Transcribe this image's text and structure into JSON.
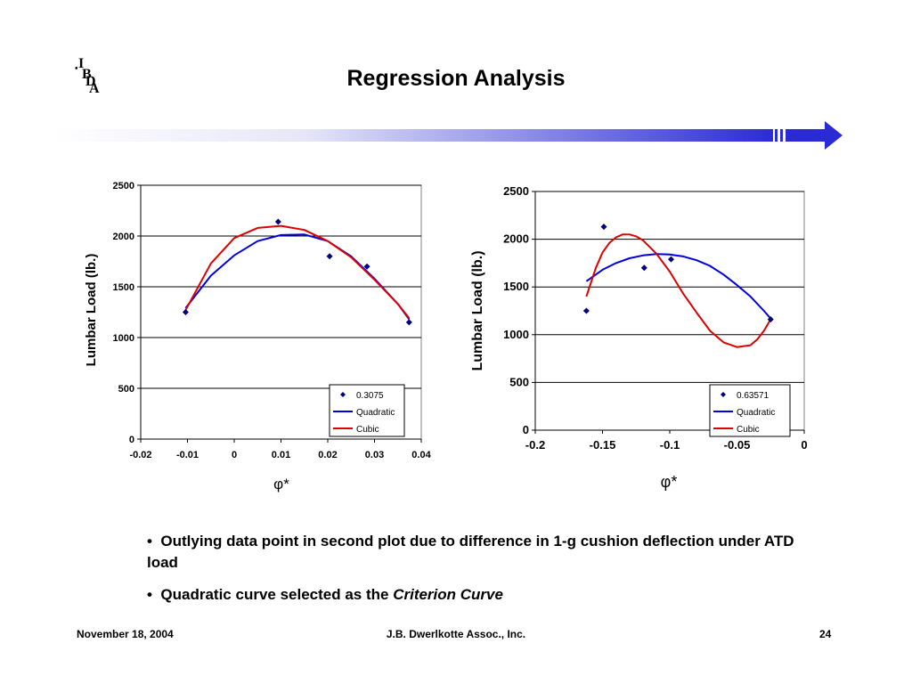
{
  "slide": {
    "logo_letters": [
      "I",
      "B",
      "D",
      "A"
    ],
    "title": "Regression Analysis",
    "bullets": [
      {
        "text": "Outlying data point in second plot due to difference in 1-g cushion deflection under ATD load",
        "italic_tail": ""
      },
      {
        "text": "Quadratic curve selected as the ",
        "italic_tail": "Criterion Curve"
      }
    ],
    "bullet_symbol": "•",
    "footer": {
      "date": "November 18, 2004",
      "company": "J.B. Dwerlkotte Assoc., Inc.",
      "page": "24"
    },
    "colors": {
      "banner_start": "#ffffff",
      "banner_end": "#2b2bd6",
      "arrow": "#2b2bd6"
    }
  },
  "chart_data": [
    {
      "type": "scatter",
      "xlabel": "φ*",
      "ylabel": "Lumbar Load (lb.)",
      "xlim": [
        -0.02,
        0.04
      ],
      "ylim": [
        0,
        2500
      ],
      "xticks": [
        "-0.02",
        "-0.01",
        "0",
        "0.01",
        "0.02",
        "0.03",
        "0.04"
      ],
      "yticks": [
        "0",
        "500",
        "1000",
        "1500",
        "2000",
        "2500"
      ],
      "grid": "horizontal",
      "legend_position": "bottom-right",
      "points": {
        "name": "0.3075",
        "color": "#000080",
        "x": [
          -0.0104,
          0.0094,
          0.0204,
          0.0284,
          0.0374
        ],
        "y": [
          1250,
          2140,
          1800,
          1700,
          1150
        ]
      },
      "series": [
        {
          "name": "Quadratic",
          "color": "#0000dd",
          "x": [
            -0.0104,
            -0.005,
            0.0,
            0.005,
            0.01,
            0.015,
            0.02,
            0.025,
            0.03,
            0.035,
            0.0374
          ],
          "y": [
            1290,
            1610,
            1810,
            1950,
            2010,
            2015,
            1950,
            1800,
            1580,
            1330,
            1180
          ]
        },
        {
          "name": "Cubic",
          "color": "#dd0000",
          "x": [
            -0.0104,
            -0.005,
            0.0,
            0.005,
            0.01,
            0.015,
            0.02,
            0.025,
            0.03,
            0.035,
            0.0374
          ],
          "y": [
            1270,
            1730,
            1980,
            2080,
            2100,
            2060,
            1950,
            1790,
            1570,
            1330,
            1190
          ]
        }
      ]
    },
    {
      "type": "scatter",
      "xlabel": "φ*",
      "ylabel": "Lumbar Load (lb.)",
      "xlim": [
        -0.2,
        0
      ],
      "ylim": [
        0,
        2500
      ],
      "xticks": [
        "-0.2",
        "-0.15",
        "-0.1",
        "-0.05",
        "0"
      ],
      "yticks": [
        "0",
        "500",
        "1000",
        "1500",
        "2000",
        "2500"
      ],
      "grid": "horizontal",
      "legend_position": "bottom-right",
      "points": {
        "name": "0.63571",
        "color": "#000080",
        "x": [
          -0.162,
          -0.149,
          -0.119,
          -0.099,
          -0.025
        ],
        "y": [
          1250,
          2130,
          1700,
          1790,
          1160
        ]
      },
      "series": [
        {
          "name": "Quadratic",
          "color": "#0000dd",
          "x": [
            -0.162,
            -0.15,
            -0.14,
            -0.13,
            -0.12,
            -0.11,
            -0.1,
            -0.09,
            -0.08,
            -0.07,
            -0.06,
            -0.05,
            -0.04,
            -0.03,
            -0.025
          ],
          "y": [
            1560,
            1680,
            1750,
            1800,
            1830,
            1845,
            1840,
            1820,
            1780,
            1720,
            1630,
            1520,
            1400,
            1250,
            1170
          ]
        },
        {
          "name": "Cubic",
          "color": "#dd0000",
          "x": [
            -0.162,
            -0.155,
            -0.15,
            -0.145,
            -0.14,
            -0.135,
            -0.13,
            -0.125,
            -0.12,
            -0.11,
            -0.1,
            -0.09,
            -0.08,
            -0.07,
            -0.06,
            -0.05,
            -0.04,
            -0.035,
            -0.03,
            -0.025
          ],
          "y": [
            1400,
            1700,
            1860,
            1960,
            2020,
            2050,
            2050,
            2030,
            1990,
            1850,
            1660,
            1430,
            1230,
            1040,
            920,
            870,
            890,
            950,
            1040,
            1160
          ]
        }
      ]
    }
  ]
}
